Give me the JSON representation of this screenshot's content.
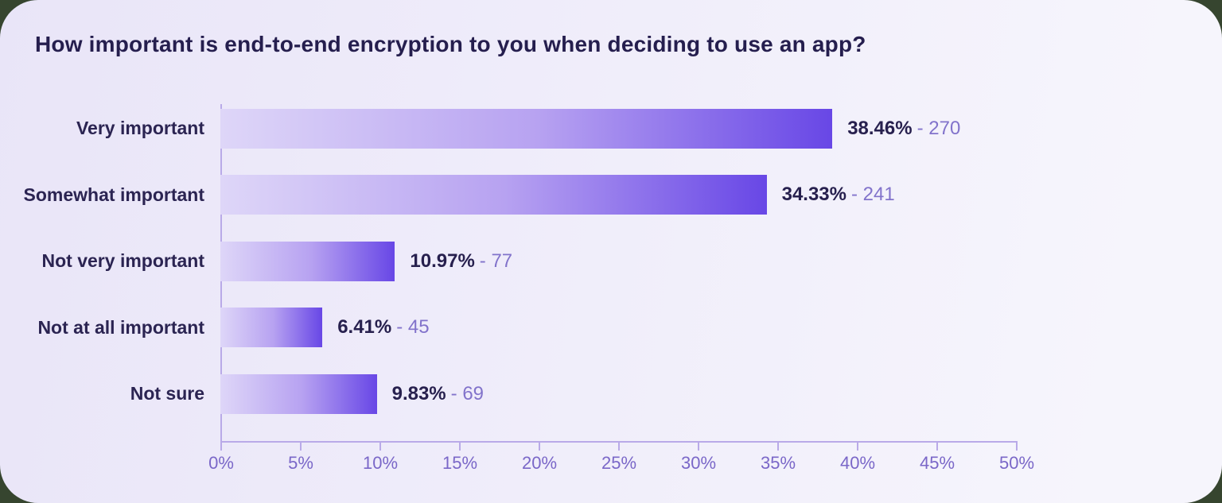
{
  "page": {
    "outside_background": "#36452f",
    "card_gradient_left": "#e9e5f8",
    "card_gradient_right": "#f6f5fc"
  },
  "title": "How important is end-to-end encryption to you when deciding to use an app?",
  "chart_data": {
    "type": "bar",
    "orientation": "horizontal",
    "title": "How important is end-to-end encryption to you when deciding to use an app?",
    "categories": [
      "Very important",
      "Somewhat important",
      "Not very important",
      "Not at all important",
      "Not sure"
    ],
    "percent_values": [
      38.46,
      34.33,
      10.97,
      6.41,
      9.83
    ],
    "counts": [
      270,
      241,
      77,
      45,
      69
    ],
    "value_labels": [
      "38.46% - 270",
      "34.33% - 241",
      "10.97% - 77",
      "6.41% - 45",
      "9.83% - 69"
    ],
    "separator": "-",
    "x_axis": {
      "min": 0,
      "max": 50,
      "unit": "%",
      "tick_labels": [
        "0%",
        "5%",
        "10%",
        "15%",
        "20%",
        "25%",
        "30%",
        "35%",
        "40%",
        "45%",
        "50%"
      ]
    },
    "grid": false,
    "legend": "none",
    "colors": {
      "bar_gradient_start": "#ded6f8",
      "bar_gradient_end": "#6847e6",
      "axis": "#b9aae8",
      "tick_label": "#7a67c8",
      "category_label": "#2b2452",
      "percent_label": "#27204e",
      "count_label": "#8273cb",
      "title": "#251e4e"
    }
  }
}
